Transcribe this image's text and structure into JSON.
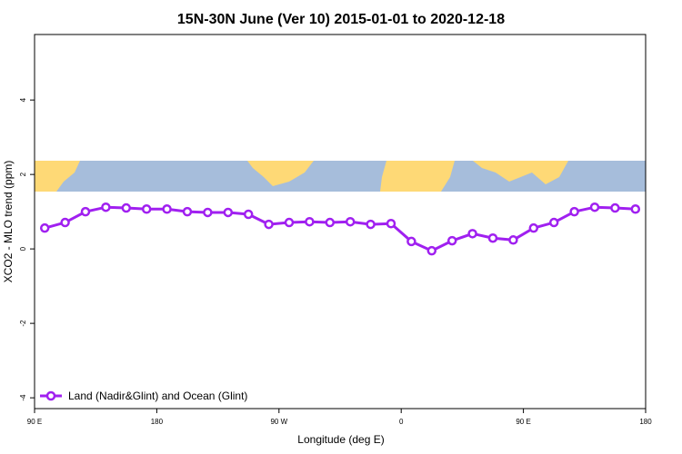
{
  "chart_data": {
    "type": "line",
    "title": "15N-30N June (Ver 10)   2015-01-01 to 2020-12-18",
    "x_label": "Longitude (deg E)",
    "y_label": "XCO2 - MLO trend (ppm)",
    "xlim": [
      90,
      540
    ],
    "ylim": [
      -4.29,
      5.76
    ],
    "xticks": [
      {
        "value": 90,
        "label": "90 E"
      },
      180,
      {
        "value": 270,
        "label": "90 W"
      },
      {
        "value": 360,
        "label": "0"
      },
      {
        "value": 450,
        "label": "90 E"
      },
      {
        "value": 540,
        "label": "180"
      }
    ],
    "yticks": [
      -4,
      -2,
      0,
      2,
      4
    ],
    "legend_position": "bottom-left",
    "x": [
      97.5,
      112.5,
      127.5,
      142.5,
      157.5,
      172.5,
      187.5,
      202.5,
      217.5,
      232.5,
      247.5,
      262.5,
      277.5,
      292.5,
      307.5,
      322.5,
      337.5,
      352.5,
      367.5,
      382.5,
      397.5,
      412.5,
      427.5,
      442.5,
      457.5,
      472.5,
      487.5,
      502.5,
      517.5,
      532.5
    ],
    "series": [
      {
        "name": "Land (Nadir&Glint) and Ocean (Glint)",
        "color": "#a020f0",
        "values": [
          0.56,
          0.71,
          1.0,
          1.12,
          1.1,
          1.07,
          1.07,
          1.0,
          0.98,
          0.98,
          0.93,
          0.66,
          0.71,
          0.73,
          0.71,
          0.73,
          0.66,
          0.68,
          0.2,
          -0.05,
          0.22,
          0.41,
          0.29,
          0.24,
          0.56,
          0.71,
          1.0,
          1.12,
          1.1,
          1.07
        ]
      }
    ]
  }
}
